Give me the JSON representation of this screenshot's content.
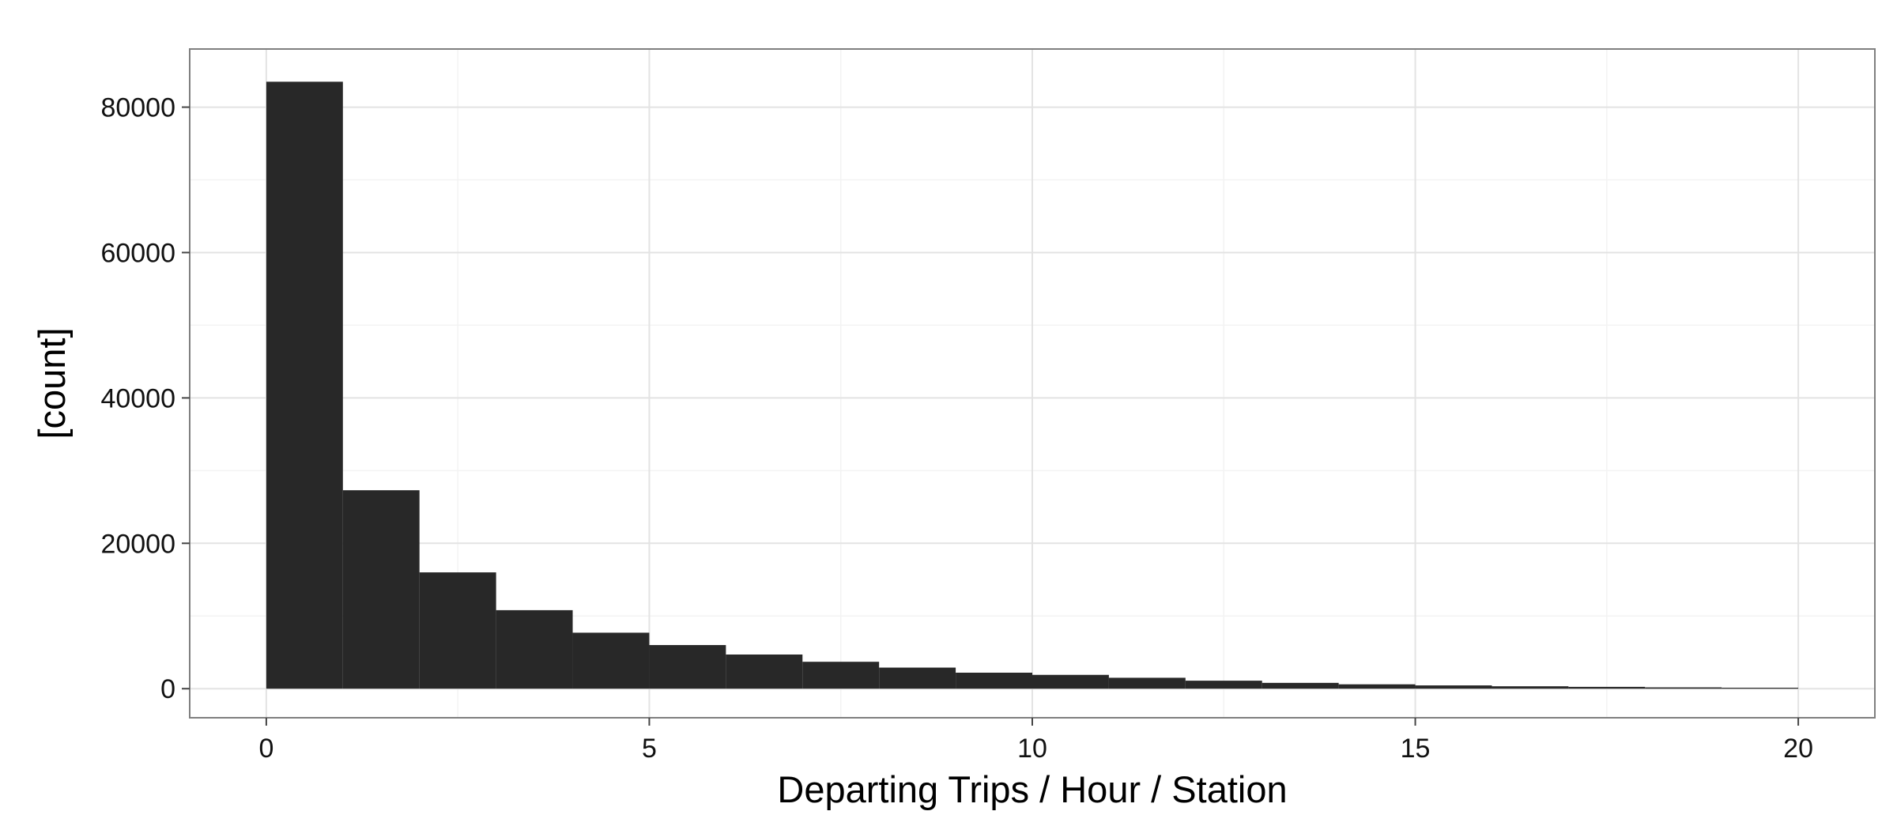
{
  "chart_data": {
    "type": "bar",
    "subtype": "histogram",
    "xlabel": "Departing Trips / Hour / Station",
    "ylabel": "[count]",
    "bin_width": 1,
    "bins": [
      {
        "x0": 0,
        "x1": 1,
        "count": 83500
      },
      {
        "x0": 1,
        "x1": 2,
        "count": 27300
      },
      {
        "x0": 2,
        "x1": 3,
        "count": 16000
      },
      {
        "x0": 3,
        "x1": 4,
        "count": 10800
      },
      {
        "x0": 4,
        "x1": 5,
        "count": 7700
      },
      {
        "x0": 5,
        "x1": 6,
        "count": 6000
      },
      {
        "x0": 6,
        "x1": 7,
        "count": 4700
      },
      {
        "x0": 7,
        "x1": 8,
        "count": 3700
      },
      {
        "x0": 8,
        "x1": 9,
        "count": 2900
      },
      {
        "x0": 9,
        "x1": 10,
        "count": 2200
      },
      {
        "x0": 10,
        "x1": 11,
        "count": 1900
      },
      {
        "x0": 11,
        "x1": 12,
        "count": 1500
      },
      {
        "x0": 12,
        "x1": 13,
        "count": 1100
      },
      {
        "x0": 13,
        "x1": 14,
        "count": 800
      },
      {
        "x0": 14,
        "x1": 15,
        "count": 600
      },
      {
        "x0": 15,
        "x1": 16,
        "count": 450
      },
      {
        "x0": 16,
        "x1": 17,
        "count": 330
      },
      {
        "x0": 17,
        "x1": 18,
        "count": 250
      },
      {
        "x0": 18,
        "x1": 19,
        "count": 180
      },
      {
        "x0": 19,
        "x1": 20,
        "count": 130
      }
    ],
    "xlim": [
      -1,
      21
    ],
    "ylim": [
      -4000,
      88000
    ],
    "x_ticks": [
      0,
      5,
      10,
      15,
      20
    ],
    "x_tick_labels": [
      "0",
      "5",
      "10",
      "15",
      "20"
    ],
    "y_ticks": [
      0,
      20000,
      40000,
      60000,
      80000
    ],
    "y_tick_labels": [
      "0",
      "20000",
      "40000",
      "60000",
      "80000"
    ],
    "grid": true,
    "legend": "none",
    "bar_color": "#282828",
    "panel_border_color": "#7f7f7f"
  }
}
